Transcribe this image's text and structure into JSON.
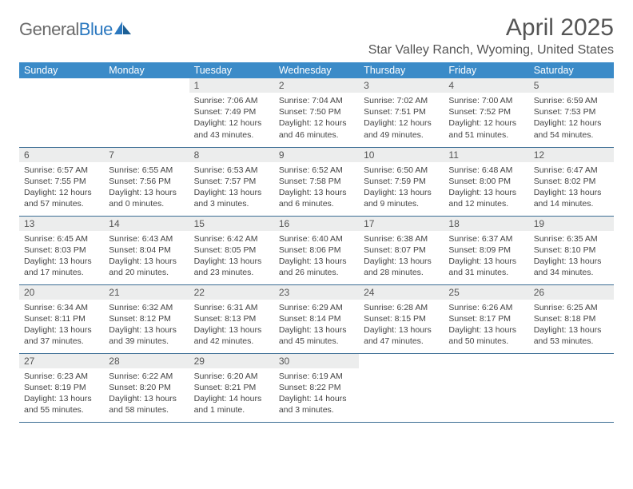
{
  "header": {
    "logo_general": "General",
    "logo_blue": "Blue",
    "month_title": "April 2025",
    "location": "Star Valley Ranch, Wyoming, United States"
  },
  "colors": {
    "header_bg": "#3b8bc8",
    "header_text": "#ffffff",
    "daynum_bg": "#eceded",
    "border": "#3b6d94",
    "logo_gray": "#6a6a6a",
    "logo_blue": "#2b78bf"
  },
  "days_of_week": [
    "Sunday",
    "Monday",
    "Tuesday",
    "Wednesday",
    "Thursday",
    "Friday",
    "Saturday"
  ],
  "weeks": [
    [
      null,
      null,
      {
        "n": "1",
        "sr": "7:06 AM",
        "ss": "7:49 PM",
        "dl": "12 hours and 43 minutes."
      },
      {
        "n": "2",
        "sr": "7:04 AM",
        "ss": "7:50 PM",
        "dl": "12 hours and 46 minutes."
      },
      {
        "n": "3",
        "sr": "7:02 AM",
        "ss": "7:51 PM",
        "dl": "12 hours and 49 minutes."
      },
      {
        "n": "4",
        "sr": "7:00 AM",
        "ss": "7:52 PM",
        "dl": "12 hours and 51 minutes."
      },
      {
        "n": "5",
        "sr": "6:59 AM",
        "ss": "7:53 PM",
        "dl": "12 hours and 54 minutes."
      }
    ],
    [
      {
        "n": "6",
        "sr": "6:57 AM",
        "ss": "7:55 PM",
        "dl": "12 hours and 57 minutes."
      },
      {
        "n": "7",
        "sr": "6:55 AM",
        "ss": "7:56 PM",
        "dl": "13 hours and 0 minutes."
      },
      {
        "n": "8",
        "sr": "6:53 AM",
        "ss": "7:57 PM",
        "dl": "13 hours and 3 minutes."
      },
      {
        "n": "9",
        "sr": "6:52 AM",
        "ss": "7:58 PM",
        "dl": "13 hours and 6 minutes."
      },
      {
        "n": "10",
        "sr": "6:50 AM",
        "ss": "7:59 PM",
        "dl": "13 hours and 9 minutes."
      },
      {
        "n": "11",
        "sr": "6:48 AM",
        "ss": "8:00 PM",
        "dl": "13 hours and 12 minutes."
      },
      {
        "n": "12",
        "sr": "6:47 AM",
        "ss": "8:02 PM",
        "dl": "13 hours and 14 minutes."
      }
    ],
    [
      {
        "n": "13",
        "sr": "6:45 AM",
        "ss": "8:03 PM",
        "dl": "13 hours and 17 minutes."
      },
      {
        "n": "14",
        "sr": "6:43 AM",
        "ss": "8:04 PM",
        "dl": "13 hours and 20 minutes."
      },
      {
        "n": "15",
        "sr": "6:42 AM",
        "ss": "8:05 PM",
        "dl": "13 hours and 23 minutes."
      },
      {
        "n": "16",
        "sr": "6:40 AM",
        "ss": "8:06 PM",
        "dl": "13 hours and 26 minutes."
      },
      {
        "n": "17",
        "sr": "6:38 AM",
        "ss": "8:07 PM",
        "dl": "13 hours and 28 minutes."
      },
      {
        "n": "18",
        "sr": "6:37 AM",
        "ss": "8:09 PM",
        "dl": "13 hours and 31 minutes."
      },
      {
        "n": "19",
        "sr": "6:35 AM",
        "ss": "8:10 PM",
        "dl": "13 hours and 34 minutes."
      }
    ],
    [
      {
        "n": "20",
        "sr": "6:34 AM",
        "ss": "8:11 PM",
        "dl": "13 hours and 37 minutes."
      },
      {
        "n": "21",
        "sr": "6:32 AM",
        "ss": "8:12 PM",
        "dl": "13 hours and 39 minutes."
      },
      {
        "n": "22",
        "sr": "6:31 AM",
        "ss": "8:13 PM",
        "dl": "13 hours and 42 minutes."
      },
      {
        "n": "23",
        "sr": "6:29 AM",
        "ss": "8:14 PM",
        "dl": "13 hours and 45 minutes."
      },
      {
        "n": "24",
        "sr": "6:28 AM",
        "ss": "8:15 PM",
        "dl": "13 hours and 47 minutes."
      },
      {
        "n": "25",
        "sr": "6:26 AM",
        "ss": "8:17 PM",
        "dl": "13 hours and 50 minutes."
      },
      {
        "n": "26",
        "sr": "6:25 AM",
        "ss": "8:18 PM",
        "dl": "13 hours and 53 minutes."
      }
    ],
    [
      {
        "n": "27",
        "sr": "6:23 AM",
        "ss": "8:19 PM",
        "dl": "13 hours and 55 minutes."
      },
      {
        "n": "28",
        "sr": "6:22 AM",
        "ss": "8:20 PM",
        "dl": "13 hours and 58 minutes."
      },
      {
        "n": "29",
        "sr": "6:20 AM",
        "ss": "8:21 PM",
        "dl": "14 hours and 1 minute."
      },
      {
        "n": "30",
        "sr": "6:19 AM",
        "ss": "8:22 PM",
        "dl": "14 hours and 3 minutes."
      },
      null,
      null,
      null
    ]
  ],
  "labels": {
    "sunrise": "Sunrise: ",
    "sunset": "Sunset: ",
    "daylight": "Daylight: "
  }
}
